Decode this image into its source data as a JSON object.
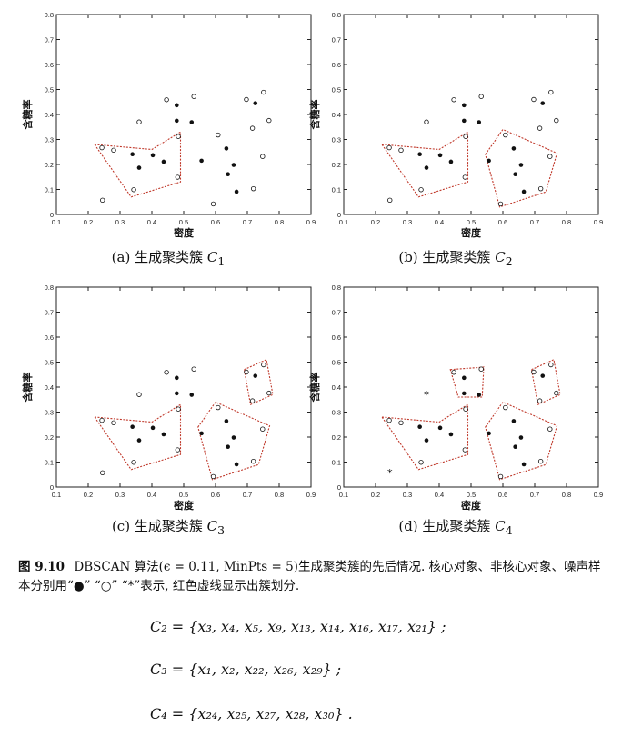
{
  "panels": [
    {
      "caption_prefix": "(a) 生成聚类簇",
      "caption_math": "C",
      "caption_sub": "1"
    },
    {
      "caption_prefix": "(b) 生成聚类簇",
      "caption_math": "C",
      "caption_sub": "2"
    },
    {
      "caption_prefix": "(c) 生成聚类簇",
      "caption_math": "C",
      "caption_sub": "3"
    },
    {
      "caption_prefix": "(d) 生成聚类簇",
      "caption_math": "C",
      "caption_sub": "4"
    }
  ],
  "figure_caption": {
    "number": "图 9.10",
    "text": "DBSCAN 算法(ϵ = 0.11, MinPts = 5)生成聚类簇的先后情况. 核心对象、非核心对象、噪声样本分别用“●” “○” “*”表示, 红色虚线显示出簇划分."
  },
  "equations": [
    {
      "text": "C₂ = {x₃, x₄, x₅, x₉, x₁₃, x₁₄, x₁₆, x₁₇, x₂₁} ;"
    },
    {
      "text": "C₃ = {x₁, x₂, x₂₂, x₂₆, x₂₉} ;"
    },
    {
      "text": "C₄ = {x₂₄, x₂₅, x₂₇, x₂₈, x₃₀} ."
    }
  ],
  "chart_data": [
    {
      "type": "scatter",
      "xlabel": "密度",
      "ylabel": "含糖率",
      "xlim": [
        0.1,
        0.9
      ],
      "ylim": [
        0,
        0.8
      ],
      "xticks": [
        "0.1",
        "0.2",
        "0.3",
        "0.4",
        "0.5",
        "0.6",
        "0.7",
        "0.8",
        "0.9"
      ],
      "yticks": [
        "0",
        "0.1",
        "0.2",
        "0.3",
        "0.4",
        "0.5",
        "0.6",
        "0.7",
        "0.8"
      ],
      "points": [
        {
          "x": 0.245,
          "y": 0.057,
          "m": "open"
        },
        {
          "x": 0.243,
          "y": 0.267,
          "m": "open"
        },
        {
          "x": 0.28,
          "y": 0.257,
          "m": "open"
        },
        {
          "x": 0.343,
          "y": 0.099,
          "m": "open"
        },
        {
          "x": 0.36,
          "y": 0.37,
          "m": "open"
        },
        {
          "x": 0.339,
          "y": 0.241,
          "m": "core"
        },
        {
          "x": 0.36,
          "y": 0.187,
          "m": "core"
        },
        {
          "x": 0.403,
          "y": 0.237,
          "m": "core"
        },
        {
          "x": 0.437,
          "y": 0.211,
          "m": "core"
        },
        {
          "x": 0.446,
          "y": 0.459,
          "m": "open"
        },
        {
          "x": 0.481,
          "y": 0.149,
          "m": "open"
        },
        {
          "x": 0.483,
          "y": 0.312,
          "m": "open"
        },
        {
          "x": 0.478,
          "y": 0.437,
          "m": "core"
        },
        {
          "x": 0.525,
          "y": 0.369,
          "m": "core"
        },
        {
          "x": 0.532,
          "y": 0.472,
          "m": "open"
        },
        {
          "x": 0.556,
          "y": 0.215,
          "m": "core"
        },
        {
          "x": 0.593,
          "y": 0.042,
          "m": "open"
        },
        {
          "x": 0.608,
          "y": 0.318,
          "m": "open"
        },
        {
          "x": 0.634,
          "y": 0.264,
          "m": "core"
        },
        {
          "x": 0.639,
          "y": 0.161,
          "m": "core"
        },
        {
          "x": 0.657,
          "y": 0.198,
          "m": "core"
        },
        {
          "x": 0.666,
          "y": 0.091,
          "m": "core"
        },
        {
          "x": 0.697,
          "y": 0.46,
          "m": "open"
        },
        {
          "x": 0.719,
          "y": 0.103,
          "m": "open"
        },
        {
          "x": 0.725,
          "y": 0.445,
          "m": "core"
        },
        {
          "x": 0.748,
          "y": 0.232,
          "m": "open"
        },
        {
          "x": 0.751,
          "y": 0.489,
          "m": "open"
        },
        {
          "x": 0.768,
          "y": 0.376,
          "m": "open"
        },
        {
          "x": 0.716,
          "y": 0.345,
          "m": "open"
        },
        {
          "x": 0.478,
          "y": 0.375,
          "m": "core"
        }
      ],
      "clusters": [
        [
          [
            0.22,
            0.28
          ],
          [
            0.4,
            0.26
          ],
          [
            0.49,
            0.33
          ],
          [
            0.49,
            0.13
          ],
          [
            0.335,
            0.07
          ]
        ]
      ]
    },
    {
      "type": "scatter",
      "xlabel": "密度",
      "ylabel": "含糖率",
      "xlim": [
        0.1,
        0.9
      ],
      "ylim": [
        0,
        0.8
      ],
      "xticks": [
        "0.1",
        "0.2",
        "0.3",
        "0.4",
        "0.5",
        "0.6",
        "0.7",
        "0.8",
        "0.9"
      ],
      "yticks": [
        "0",
        "0.1",
        "0.2",
        "0.3",
        "0.4",
        "0.5",
        "0.6",
        "0.7",
        "0.8"
      ],
      "points": [
        {
          "x": 0.245,
          "y": 0.057,
          "m": "open"
        },
        {
          "x": 0.243,
          "y": 0.267,
          "m": "open"
        },
        {
          "x": 0.28,
          "y": 0.257,
          "m": "open"
        },
        {
          "x": 0.343,
          "y": 0.099,
          "m": "open"
        },
        {
          "x": 0.36,
          "y": 0.37,
          "m": "open"
        },
        {
          "x": 0.339,
          "y": 0.241,
          "m": "core"
        },
        {
          "x": 0.36,
          "y": 0.187,
          "m": "core"
        },
        {
          "x": 0.403,
          "y": 0.237,
          "m": "core"
        },
        {
          "x": 0.437,
          "y": 0.211,
          "m": "core"
        },
        {
          "x": 0.446,
          "y": 0.459,
          "m": "open"
        },
        {
          "x": 0.481,
          "y": 0.149,
          "m": "open"
        },
        {
          "x": 0.483,
          "y": 0.312,
          "m": "open"
        },
        {
          "x": 0.478,
          "y": 0.437,
          "m": "core"
        },
        {
          "x": 0.525,
          "y": 0.369,
          "m": "core"
        },
        {
          "x": 0.532,
          "y": 0.472,
          "m": "open"
        },
        {
          "x": 0.556,
          "y": 0.215,
          "m": "core"
        },
        {
          "x": 0.593,
          "y": 0.042,
          "m": "open"
        },
        {
          "x": 0.608,
          "y": 0.318,
          "m": "open"
        },
        {
          "x": 0.634,
          "y": 0.264,
          "m": "core"
        },
        {
          "x": 0.639,
          "y": 0.161,
          "m": "core"
        },
        {
          "x": 0.657,
          "y": 0.198,
          "m": "core"
        },
        {
          "x": 0.666,
          "y": 0.091,
          "m": "core"
        },
        {
          "x": 0.697,
          "y": 0.46,
          "m": "open"
        },
        {
          "x": 0.719,
          "y": 0.103,
          "m": "open"
        },
        {
          "x": 0.725,
          "y": 0.445,
          "m": "core"
        },
        {
          "x": 0.748,
          "y": 0.232,
          "m": "open"
        },
        {
          "x": 0.751,
          "y": 0.489,
          "m": "open"
        },
        {
          "x": 0.768,
          "y": 0.376,
          "m": "open"
        },
        {
          "x": 0.716,
          "y": 0.345,
          "m": "open"
        },
        {
          "x": 0.478,
          "y": 0.375,
          "m": "core"
        }
      ],
      "clusters": [
        [
          [
            0.22,
            0.28
          ],
          [
            0.4,
            0.26
          ],
          [
            0.49,
            0.33
          ],
          [
            0.49,
            0.13
          ],
          [
            0.335,
            0.07
          ]
        ],
        [
          [
            0.545,
            0.24
          ],
          [
            0.6,
            0.34
          ],
          [
            0.77,
            0.245
          ],
          [
            0.735,
            0.09
          ],
          [
            0.59,
            0.03
          ]
        ]
      ]
    },
    {
      "type": "scatter",
      "xlabel": "密度",
      "ylabel": "含糖率",
      "xlim": [
        0.1,
        0.9
      ],
      "ylim": [
        0,
        0.8
      ],
      "xticks": [
        "0.1",
        "0.2",
        "0.3",
        "0.4",
        "0.5",
        "0.6",
        "0.7",
        "0.8",
        "0.9"
      ],
      "yticks": [
        "0",
        "0.1",
        "0.2",
        "0.3",
        "0.4",
        "0.5",
        "0.6",
        "0.7",
        "0.8"
      ],
      "points": [
        {
          "x": 0.245,
          "y": 0.057,
          "m": "open"
        },
        {
          "x": 0.243,
          "y": 0.267,
          "m": "open"
        },
        {
          "x": 0.28,
          "y": 0.257,
          "m": "open"
        },
        {
          "x": 0.343,
          "y": 0.099,
          "m": "open"
        },
        {
          "x": 0.36,
          "y": 0.37,
          "m": "open"
        },
        {
          "x": 0.339,
          "y": 0.241,
          "m": "core"
        },
        {
          "x": 0.36,
          "y": 0.187,
          "m": "core"
        },
        {
          "x": 0.403,
          "y": 0.237,
          "m": "core"
        },
        {
          "x": 0.437,
          "y": 0.211,
          "m": "core"
        },
        {
          "x": 0.446,
          "y": 0.459,
          "m": "open"
        },
        {
          "x": 0.481,
          "y": 0.149,
          "m": "open"
        },
        {
          "x": 0.483,
          "y": 0.312,
          "m": "open"
        },
        {
          "x": 0.478,
          "y": 0.437,
          "m": "core"
        },
        {
          "x": 0.525,
          "y": 0.369,
          "m": "core"
        },
        {
          "x": 0.532,
          "y": 0.472,
          "m": "open"
        },
        {
          "x": 0.556,
          "y": 0.215,
          "m": "core"
        },
        {
          "x": 0.593,
          "y": 0.042,
          "m": "open"
        },
        {
          "x": 0.608,
          "y": 0.318,
          "m": "open"
        },
        {
          "x": 0.634,
          "y": 0.264,
          "m": "core"
        },
        {
          "x": 0.639,
          "y": 0.161,
          "m": "core"
        },
        {
          "x": 0.657,
          "y": 0.198,
          "m": "core"
        },
        {
          "x": 0.666,
          "y": 0.091,
          "m": "core"
        },
        {
          "x": 0.697,
          "y": 0.46,
          "m": "open"
        },
        {
          "x": 0.719,
          "y": 0.103,
          "m": "open"
        },
        {
          "x": 0.725,
          "y": 0.445,
          "m": "core"
        },
        {
          "x": 0.748,
          "y": 0.232,
          "m": "open"
        },
        {
          "x": 0.751,
          "y": 0.489,
          "m": "open"
        },
        {
          "x": 0.768,
          "y": 0.376,
          "m": "open"
        },
        {
          "x": 0.716,
          "y": 0.345,
          "m": "open"
        },
        {
          "x": 0.478,
          "y": 0.375,
          "m": "core"
        }
      ],
      "clusters": [
        [
          [
            0.22,
            0.28
          ],
          [
            0.4,
            0.26
          ],
          [
            0.49,
            0.33
          ],
          [
            0.49,
            0.13
          ],
          [
            0.335,
            0.07
          ]
        ],
        [
          [
            0.545,
            0.24
          ],
          [
            0.6,
            0.34
          ],
          [
            0.77,
            0.245
          ],
          [
            0.735,
            0.09
          ],
          [
            0.59,
            0.03
          ]
        ],
        [
          [
            0.69,
            0.47
          ],
          [
            0.76,
            0.51
          ],
          [
            0.78,
            0.37
          ],
          [
            0.71,
            0.33
          ]
        ]
      ]
    },
    {
      "type": "scatter",
      "xlabel": "密度",
      "ylabel": "含糖率",
      "xlim": [
        0.1,
        0.9
      ],
      "ylim": [
        0,
        0.8
      ],
      "xticks": [
        "0.1",
        "0.2",
        "0.3",
        "0.4",
        "0.5",
        "0.6",
        "0.7",
        "0.8",
        "0.9"
      ],
      "yticks": [
        "0",
        "0.1",
        "0.2",
        "0.3",
        "0.4",
        "0.5",
        "0.6",
        "0.7",
        "0.8"
      ],
      "points": [
        {
          "x": 0.245,
          "y": 0.057,
          "m": "noise"
        },
        {
          "x": 0.243,
          "y": 0.267,
          "m": "open"
        },
        {
          "x": 0.28,
          "y": 0.257,
          "m": "open"
        },
        {
          "x": 0.343,
          "y": 0.099,
          "m": "open"
        },
        {
          "x": 0.36,
          "y": 0.37,
          "m": "noise"
        },
        {
          "x": 0.339,
          "y": 0.241,
          "m": "core"
        },
        {
          "x": 0.36,
          "y": 0.187,
          "m": "core"
        },
        {
          "x": 0.403,
          "y": 0.237,
          "m": "core"
        },
        {
          "x": 0.437,
          "y": 0.211,
          "m": "core"
        },
        {
          "x": 0.446,
          "y": 0.459,
          "m": "open"
        },
        {
          "x": 0.481,
          "y": 0.149,
          "m": "open"
        },
        {
          "x": 0.483,
          "y": 0.312,
          "m": "open"
        },
        {
          "x": 0.478,
          "y": 0.437,
          "m": "core"
        },
        {
          "x": 0.525,
          "y": 0.369,
          "m": "core"
        },
        {
          "x": 0.532,
          "y": 0.472,
          "m": "open"
        },
        {
          "x": 0.556,
          "y": 0.215,
          "m": "core"
        },
        {
          "x": 0.593,
          "y": 0.042,
          "m": "open"
        },
        {
          "x": 0.608,
          "y": 0.318,
          "m": "open"
        },
        {
          "x": 0.634,
          "y": 0.264,
          "m": "core"
        },
        {
          "x": 0.639,
          "y": 0.161,
          "m": "core"
        },
        {
          "x": 0.657,
          "y": 0.198,
          "m": "core"
        },
        {
          "x": 0.666,
          "y": 0.091,
          "m": "core"
        },
        {
          "x": 0.697,
          "y": 0.46,
          "m": "open"
        },
        {
          "x": 0.719,
          "y": 0.103,
          "m": "open"
        },
        {
          "x": 0.725,
          "y": 0.445,
          "m": "core"
        },
        {
          "x": 0.748,
          "y": 0.232,
          "m": "open"
        },
        {
          "x": 0.751,
          "y": 0.489,
          "m": "open"
        },
        {
          "x": 0.768,
          "y": 0.376,
          "m": "open"
        },
        {
          "x": 0.716,
          "y": 0.345,
          "m": "open"
        },
        {
          "x": 0.478,
          "y": 0.375,
          "m": "core"
        }
      ],
      "clusters": [
        [
          [
            0.22,
            0.28
          ],
          [
            0.4,
            0.26
          ],
          [
            0.49,
            0.33
          ],
          [
            0.49,
            0.13
          ],
          [
            0.335,
            0.07
          ]
        ],
        [
          [
            0.545,
            0.24
          ],
          [
            0.6,
            0.34
          ],
          [
            0.77,
            0.245
          ],
          [
            0.735,
            0.09
          ],
          [
            0.59,
            0.03
          ]
        ],
        [
          [
            0.69,
            0.47
          ],
          [
            0.76,
            0.51
          ],
          [
            0.78,
            0.37
          ],
          [
            0.71,
            0.33
          ]
        ],
        [
          [
            0.435,
            0.47
          ],
          [
            0.54,
            0.48
          ],
          [
            0.535,
            0.36
          ],
          [
            0.46,
            0.36
          ]
        ]
      ]
    }
  ]
}
